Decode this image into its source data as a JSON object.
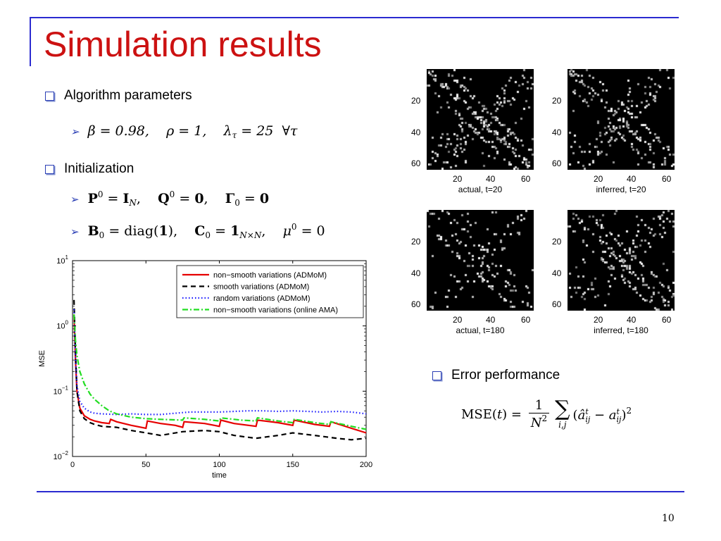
{
  "slide": {
    "title": "Simulation results",
    "page_number": "10",
    "colors": {
      "title": "#cc1111",
      "rule": "#2b2bd0",
      "bullet": "#2b3fb5"
    }
  },
  "bullets": {
    "algorithm_parameters": "Algorithm parameters",
    "initialization": "Initialization",
    "error_performance": "Error performance"
  },
  "equations": {
    "params": "β = 0.98,   ρ = 1,   λτ = 25  ∀τ",
    "init1": "P0 = IN,   Q0 = 0,   Γ0 = 0",
    "init2": "B0 = diag(1),   C0 = 1N×N,   μ0 = 0",
    "mse": "MSE(t) = 1/N² Σi,j (âtij − atij)²"
  },
  "panels": [
    {
      "caption": "actual, t=20"
    },
    {
      "caption": "inferred, t=20"
    },
    {
      "caption": "actual, t=180"
    },
    {
      "caption": "inferred, t=180"
    }
  ],
  "panel_ticks": [
    "20",
    "40",
    "60"
  ],
  "chart_data": {
    "type": "line",
    "xlabel": "time",
    "ylabel": "MSE",
    "yscale": "log",
    "xlim": [
      0,
      200
    ],
    "ylim": [
      0.01,
      10
    ],
    "xticks": [
      "0",
      "50",
      "100",
      "150",
      "200"
    ],
    "yticks": [
      {
        "base": "10",
        "exp": "1"
      },
      {
        "base": "10",
        "exp": "0"
      },
      {
        "base": "10",
        "exp": "−1"
      },
      {
        "base": "10",
        "exp": "−2"
      }
    ],
    "legend_position": "top-right",
    "series": [
      {
        "name": "non−smooth variations (ADMoM)",
        "color": "#e60000",
        "dash": "solid",
        "x": [
          1,
          2,
          3,
          5,
          8,
          12,
          15,
          20,
          25,
          26,
          30,
          40,
          50,
          51,
          60,
          70,
          75,
          76,
          90,
          100,
          101,
          110,
          125,
          126,
          140,
          150,
          151,
          165,
          175,
          176,
          190,
          200
        ],
        "y": [
          1.5,
          0.3,
          0.1,
          0.055,
          0.042,
          0.037,
          0.035,
          0.033,
          0.032,
          0.037,
          0.034,
          0.03,
          0.027,
          0.035,
          0.032,
          0.03,
          0.028,
          0.034,
          0.032,
          0.029,
          0.036,
          0.032,
          0.029,
          0.036,
          0.033,
          0.03,
          0.036,
          0.031,
          0.029,
          0.034,
          0.027,
          0.023
        ]
      },
      {
        "name": "smooth variations (ADMoM)",
        "color": "#000000",
        "dash": "dashed",
        "x": [
          1,
          2,
          3,
          5,
          8,
          12,
          15,
          20,
          30,
          40,
          50,
          60,
          75,
          90,
          100,
          110,
          125,
          140,
          150,
          165,
          180,
          190,
          200
        ],
        "y": [
          2.5,
          0.4,
          0.1,
          0.05,
          0.038,
          0.033,
          0.031,
          0.029,
          0.028,
          0.025,
          0.023,
          0.021,
          0.024,
          0.025,
          0.024,
          0.021,
          0.019,
          0.021,
          0.023,
          0.021,
          0.019,
          0.018,
          0.019
        ]
      },
      {
        "name": "random variations (ADMoM)",
        "color": "#1a1aff",
        "dash": "dotted",
        "x": [
          1,
          2,
          3,
          5,
          8,
          12,
          15,
          20,
          30,
          40,
          50,
          60,
          70,
          80,
          90,
          100,
          110,
          120,
          130,
          140,
          150,
          160,
          170,
          180,
          190,
          200
        ],
        "y": [
          1.8,
          0.3,
          0.12,
          0.07,
          0.055,
          0.048,
          0.046,
          0.045,
          0.044,
          0.045,
          0.044,
          0.044,
          0.046,
          0.048,
          0.048,
          0.048,
          0.049,
          0.05,
          0.05,
          0.049,
          0.05,
          0.049,
          0.048,
          0.049,
          0.048,
          0.045
        ]
      },
      {
        "name": "non−smooth variations (online AMA)",
        "color": "#22dd22",
        "dash": "dashdot",
        "x": [
          1,
          2,
          3,
          5,
          8,
          12,
          15,
          20,
          25,
          30,
          40,
          50,
          60,
          75,
          76,
          90,
          100,
          101,
          115,
          125,
          126,
          140,
          150,
          151,
          165,
          175,
          176,
          190,
          200
        ],
        "y": [
          1.5,
          0.6,
          0.35,
          0.2,
          0.13,
          0.09,
          0.075,
          0.06,
          0.05,
          0.045,
          0.04,
          0.038,
          0.037,
          0.036,
          0.039,
          0.037,
          0.035,
          0.039,
          0.036,
          0.035,
          0.039,
          0.035,
          0.033,
          0.037,
          0.033,
          0.031,
          0.034,
          0.029,
          0.026
        ]
      }
    ]
  }
}
